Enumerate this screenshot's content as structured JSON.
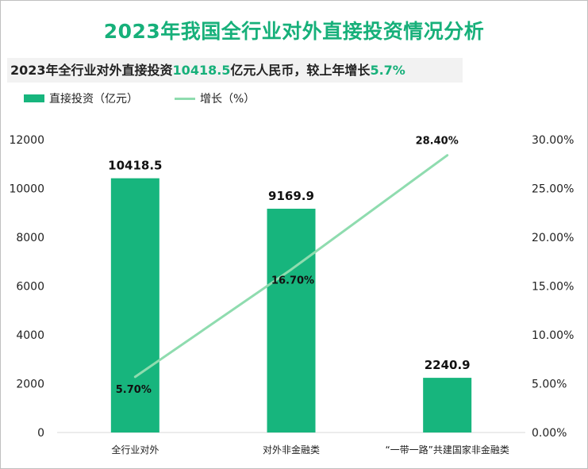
{
  "title": "2023年我国全行业对外直接投资情况分析",
  "subtitle": {
    "prefix": "2023年全行业对外直接投资",
    "value1": "10418.5",
    "middle": "亿元人民币，较上年增长",
    "value2": "5.7%"
  },
  "colors": {
    "title": "#17b07a",
    "bar": "#17b57d",
    "line": "#8fdcaf"
  },
  "chart_data": {
    "type": "bar",
    "categories": [
      "全行业对外",
      "对外非金融类",
      "“一带一路”共建国家非金融类"
    ],
    "series": [
      {
        "name": "直接投资（亿元）",
        "type": "bar",
        "axis": "left",
        "values": [
          10418.5,
          9169.9,
          2240.9
        ],
        "labels": [
          "10418.5",
          "9169.9",
          "2240.9"
        ]
      },
      {
        "name": "增长（%）",
        "type": "line",
        "axis": "right",
        "values": [
          5.7,
          16.7,
          28.4
        ],
        "labels": [
          "5.70%",
          "16.70%",
          "28.40%"
        ]
      }
    ],
    "ylim_left": [
      0,
      12000
    ],
    "ylim_right": [
      0,
      30
    ],
    "yticks_left": [
      "0",
      "2000",
      "4000",
      "6000",
      "8000",
      "10000",
      "12000"
    ],
    "yticks_right": [
      "0.00%",
      "5.00%",
      "10.00%",
      "15.00%",
      "20.00%",
      "25.00%",
      "30.00%"
    ],
    "legend_position": "top-left",
    "grid": false
  }
}
